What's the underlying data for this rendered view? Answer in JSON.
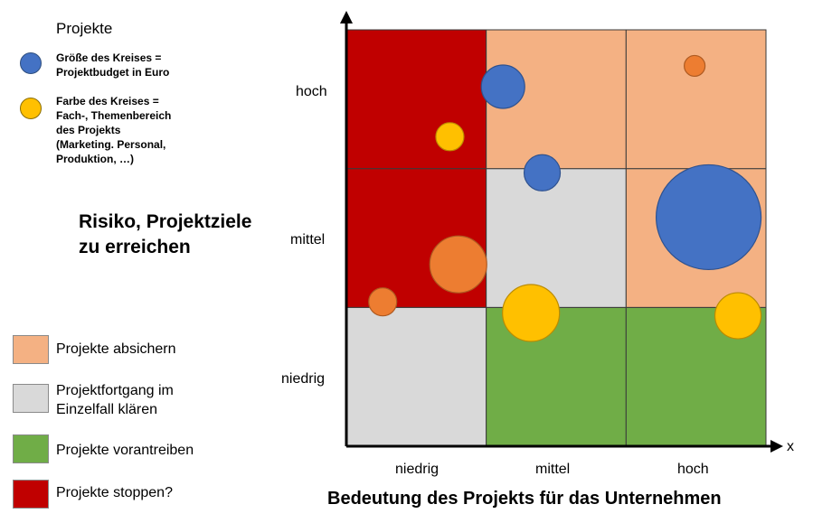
{
  "legend": {
    "title": "Projekte",
    "notes": [
      {
        "text": "Größe des Kreises =\nProjektbudget in Euro",
        "color": "#4472C4"
      },
      {
        "text": "Farbe des Kreises =\nFach-, Themenbereich\ndes Projekts\n(Marketing. Personal,\nProduktion, …)",
        "color": "#FFC000"
      }
    ],
    "categories": [
      {
        "label": "Projekte absichern",
        "color": "#F4B183"
      },
      {
        "label": "Projektfortgang im\nEinzelfall klären",
        "color": "#D9D9D9"
      },
      {
        "label": "Projekte vorantreiben",
        "color": "#70AD47"
      },
      {
        "label": "Projekte stoppen?",
        "color": "#C00000"
      }
    ]
  },
  "chart_data": {
    "type": "scatter",
    "xlabel": "Bedeutung des Projekts für das Unternehmen",
    "ylabel": "Risiko, Projektziele\nzu erreichen",
    "x_axis_letter": "x",
    "categories_x": [
      "niedrig",
      "mittel",
      "hoch"
    ],
    "categories_y": [
      "niedrig",
      "mittel",
      "hoch"
    ],
    "xlim": [
      0,
      3
    ],
    "ylim": [
      0,
      3
    ],
    "cells": [
      {
        "x": 0,
        "y": 0,
        "color": "#D9D9D9"
      },
      {
        "x": 1,
        "y": 0,
        "color": "#70AD47"
      },
      {
        "x": 2,
        "y": 0,
        "color": "#70AD47"
      },
      {
        "x": 0,
        "y": 1,
        "color": "#C00000"
      },
      {
        "x": 1,
        "y": 1,
        "color": "#D9D9D9"
      },
      {
        "x": 2,
        "y": 1,
        "color": "#F4B183"
      },
      {
        "x": 0,
        "y": 2,
        "color": "#C00000"
      },
      {
        "x": 1,
        "y": 2,
        "color": "#F4B183"
      },
      {
        "x": 2,
        "y": 2,
        "color": "#F4B183"
      }
    ],
    "bubbles": [
      {
        "x": 1.12,
        "y": 2.59,
        "size": 24,
        "color": "#4472C4"
      },
      {
        "x": 2.49,
        "y": 2.74,
        "size": 11.5,
        "color": "#ED7D31"
      },
      {
        "x": 0.74,
        "y": 2.23,
        "size": 15.5,
        "color": "#FFC000"
      },
      {
        "x": 1.4,
        "y": 1.97,
        "size": 20,
        "color": "#4472C4"
      },
      {
        "x": 2.59,
        "y": 1.65,
        "size": 58,
        "color": "#4472C4"
      },
      {
        "x": 0.8,
        "y": 1.31,
        "size": 31.5,
        "color": "#ED7D31"
      },
      {
        "x": 0.26,
        "y": 1.04,
        "size": 15.5,
        "color": "#ED7D31"
      },
      {
        "x": 1.32,
        "y": 0.96,
        "size": 31.5,
        "color": "#FFC000"
      },
      {
        "x": 2.8,
        "y": 0.94,
        "size": 25.5,
        "color": "#FFC000"
      }
    ]
  }
}
